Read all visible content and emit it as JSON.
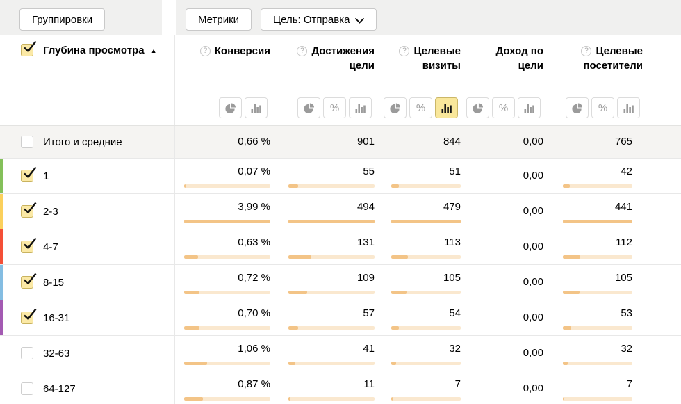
{
  "toolbar": {
    "groupings_button": "Группировки",
    "metrics_button": "Метрики",
    "goal_button": "Цель: Отправка"
  },
  "colors": {
    "checkbox_fill": "#fbe9a6",
    "bar_track": "#fae8cf",
    "bar_fill": "#f3c487",
    "active_toggle": "#f9e79b",
    "marker_green": "#84c05a",
    "marker_yellow": "#fbd05c",
    "marker_red": "#f44f37",
    "marker_blue": "#84bde2",
    "marker_purple": "#a35ab2"
  },
  "icon_names": {
    "pie": "pie-chart-icon",
    "percent": "percent-icon",
    "bar": "bar-chart-icon"
  },
  "table": {
    "dimension_header": {
      "title": "Глубина просмотра",
      "sort_arrow": "▲"
    },
    "columns": [
      {
        "label": "Конверсия",
        "lines": [
          "Конверсия"
        ],
        "help": true,
        "toggles": [
          "pie",
          "bar"
        ],
        "active": null
      },
      {
        "label": "Достижения цели",
        "lines": [
          "Достижения",
          "цели"
        ],
        "help": true,
        "toggles": [
          "pie",
          "percent",
          "bar"
        ],
        "active": null
      },
      {
        "label": "Целевые визиты",
        "lines": [
          "Целевые",
          "визиты"
        ],
        "help": true,
        "toggles": [
          "pie",
          "percent",
          "bar"
        ],
        "active": "bar"
      },
      {
        "label": "Доход по цели",
        "lines": [
          "Доход по",
          "цели"
        ],
        "help": false,
        "toggles": [
          "pie",
          "percent",
          "bar"
        ],
        "active": null
      },
      {
        "label": "Целевые посетители",
        "lines": [
          "Целевые",
          "посетители"
        ],
        "help": true,
        "toggles": [
          "pie",
          "percent",
          "bar"
        ],
        "active": null
      }
    ],
    "totals": {
      "label": "Итого и средние",
      "checked": false,
      "values": [
        "0,66 %",
        "901",
        "844",
        "0,00",
        "765"
      ]
    },
    "rows": [
      {
        "label": "1",
        "checked": true,
        "marker": "#84c05a",
        "values": [
          "0,07 %",
          "55",
          "51",
          "0,00",
          "42"
        ],
        "bars": [
          0.018,
          0.111,
          0.106,
          null,
          0.095
        ]
      },
      {
        "label": "2-3",
        "checked": true,
        "marker": "#fbd05c",
        "values": [
          "3,99 %",
          "494",
          "479",
          "0,00",
          "441"
        ],
        "bars": [
          1,
          1,
          1,
          null,
          1
        ]
      },
      {
        "label": "4-7",
        "checked": true,
        "marker": "#f44f37",
        "values": [
          "0,63 %",
          "131",
          "113",
          "0,00",
          "112"
        ],
        "bars": [
          0.158,
          0.265,
          0.236,
          null,
          0.254
        ]
      },
      {
        "label": "8-15",
        "checked": true,
        "marker": "#84bde2",
        "values": [
          "0,72 %",
          "109",
          "105",
          "0,00",
          "105"
        ],
        "bars": [
          0.18,
          0.221,
          0.219,
          null,
          0.238
        ]
      },
      {
        "label": "16-31",
        "checked": true,
        "marker": "#a35ab2",
        "values": [
          "0,70 %",
          "57",
          "54",
          "0,00",
          "53"
        ],
        "bars": [
          0.175,
          0.115,
          0.113,
          null,
          0.12
        ]
      },
      {
        "label": "32-63",
        "checked": false,
        "marker": null,
        "values": [
          "1,06 %",
          "41",
          "32",
          "0,00",
          "32"
        ],
        "bars": [
          0.266,
          0.083,
          0.067,
          null,
          0.073
        ]
      },
      {
        "label": "64-127",
        "checked": false,
        "marker": null,
        "values": [
          "0,87 %",
          "11",
          "7",
          "0,00",
          "7"
        ],
        "bars": [
          0.218,
          0.022,
          0.015,
          null,
          0.016
        ]
      }
    ]
  }
}
